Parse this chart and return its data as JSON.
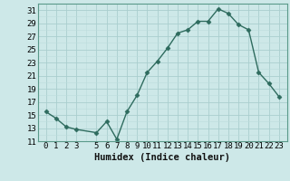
{
  "x": [
    0,
    1,
    2,
    3,
    5,
    6,
    7,
    8,
    9,
    10,
    11,
    12,
    13,
    14,
    15,
    16,
    17,
    18,
    19,
    20,
    21,
    22,
    23
  ],
  "y": [
    15.5,
    14.5,
    13.2,
    12.8,
    12.3,
    14.0,
    11.3,
    15.5,
    18.0,
    21.5,
    23.2,
    25.2,
    27.5,
    28.0,
    29.3,
    29.3,
    31.2,
    30.5,
    28.8,
    28.0,
    21.5,
    19.8,
    17.8
  ],
  "line_color": "#2e6b5e",
  "marker": "D",
  "marker_size": 2.5,
  "bg_color": "#cde8e8",
  "grid_major_color": "#aacece",
  "grid_minor_color": "#bcdcdc",
  "xlabel": "Humidex (Indice chaleur)",
  "ylim": [
    11,
    32
  ],
  "yticks": [
    11,
    13,
    15,
    17,
    19,
    21,
    23,
    25,
    27,
    29,
    31
  ],
  "xticks": [
    0,
    1,
    2,
    3,
    5,
    6,
    7,
    8,
    9,
    10,
    11,
    12,
    13,
    14,
    15,
    16,
    17,
    18,
    19,
    20,
    21,
    22,
    23
  ],
  "xlabel_fontsize": 7.5,
  "tick_fontsize": 6.5,
  "line_width": 1.0
}
